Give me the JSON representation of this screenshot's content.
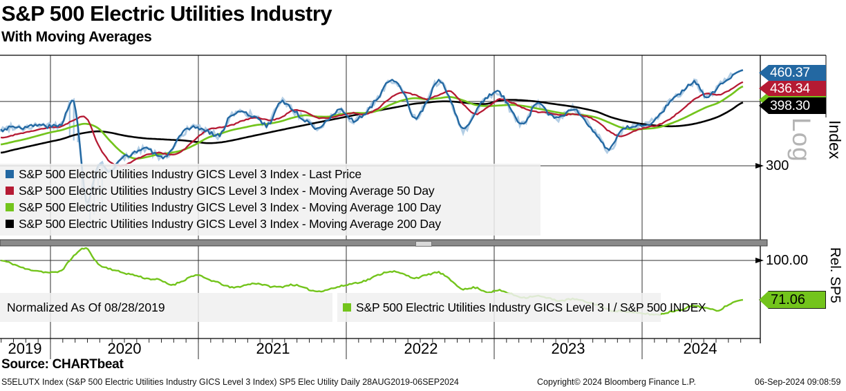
{
  "header": {
    "title": "S&P 500 Electric Utilities Industry",
    "subtitle": "With Moving Averages"
  },
  "colors": {
    "blue": "#2368a2",
    "blue_light": "#a6c6e1",
    "red": "#b51a33",
    "green": "#73c41c",
    "black": "#000000",
    "grid": "#2f2f2f",
    "separator": "#8a8a8a",
    "legend_band": "#f0f0f0",
    "log_label_gray": "#b4b4b4"
  },
  "top_panel": {
    "axis_label": "Index",
    "scale_label": "Log",
    "tick_300": "300",
    "badges": [
      {
        "value": "460.37",
        "series": "last-price",
        "text_color": "#ffffff"
      },
      {
        "value": "436.34",
        "series": "moving-average-50-day",
        "text_color": "#ffffff"
      },
      {
        "value": "",
        "series": "moving-average-100-day",
        "obscured": true,
        "text_color": "#000000"
      },
      {
        "value": "398.30",
        "series": "moving-average-200-day",
        "text_color": "#ffffff"
      }
    ],
    "legend": [
      {
        "label": "S&P 500 Electric Utilities Industry GICS Level 3 Index - Last Price"
      },
      {
        "label": "S&P 500 Electric Utilities Industry GICS Level 3 Index - Moving Average 50 Day"
      },
      {
        "label": "S&P 500 Electric Utilities Industry GICS Level 3 Index - Moving Average 100 Day"
      },
      {
        "label": "S&P 500 Electric Utilities Industry GICS Level 3 Index - Moving Average 200 Day"
      }
    ]
  },
  "bottom_panel": {
    "axis_label": "Rel. SP5",
    "tick_100": "100.00",
    "badge_value": "71.06",
    "note": "Normalized As Of 08/28/2019",
    "legend_label": "S&P 500 Electric Utilities Industry GICS Level 3 I / S&P 500 INDEX"
  },
  "xaxis": {
    "years": [
      "2019",
      "2020",
      "2021",
      "2022",
      "2023",
      "2024"
    ]
  },
  "footer": {
    "source": "Source: CHARTbeat",
    "security_line": "S5ELUTX Index (S&P 500 Electric Utilities Industry GICS Level 3 Index) SP5 Elec Utility  Daily 28AUG2019-06SEP2024",
    "copyright": "Copyright© 2024 Bloomberg Finance L.P.",
    "datetime": "06-Sep-2024 09:08:59"
  },
  "chart_data": [
    {
      "type": "line",
      "panel": "top",
      "title": "S&P 500 Electric Utilities Industry with Moving Averages",
      "x_range": [
        "28AUG2019",
        "06SEP2024"
      ],
      "x_start_decimal_year": 2019.664,
      "x_end_decimal_year": 2024.682,
      "x_resolution": "monthly",
      "yscale": "log",
      "ylim": [
        255,
        470
      ],
      "yticks": [
        300,
        400
      ],
      "grid": true,
      "last_values": {
        "last_price": 460.37,
        "ma50": 436.34,
        "ma200": 398.3
      },
      "series": [
        {
          "name": "Last Price",
          "color": "#2368a2",
          "values": [
            352,
            358,
            356,
            360,
            358,
            362,
            398,
            258,
            300,
            292,
            310,
            318,
            325,
            312,
            320,
            348,
            356,
            350,
            345,
            378,
            380,
            372,
            360,
            400,
            385,
            368,
            356,
            372,
            384,
            368,
            380,
            408,
            438,
            420,
            372,
            398,
            438,
            400,
            352,
            382,
            408,
            416,
            382,
            362,
            395,
            380,
            372,
            388,
            368,
            345,
            322,
            350,
            358,
            360,
            372,
            400,
            418,
            436,
            410,
            428,
            448,
            460.37
          ]
        },
        {
          "name": "Moving Average 50 Day",
          "color": "#b51a33",
          "values": [
            340,
            344,
            348,
            352,
            356,
            358,
            368,
            372,
            330,
            305,
            300,
            308,
            315,
            318,
            315,
            322,
            338,
            352,
            356,
            360,
            368,
            372,
            368,
            372,
            384,
            382,
            372,
            372,
            376,
            380,
            378,
            388,
            406,
            416,
            412,
            404,
            412,
            418,
            395,
            378,
            390,
            404,
            398,
            388,
            382,
            380,
            376,
            378,
            375,
            366,
            350,
            342,
            350,
            356,
            360,
            370,
            386,
            404,
            414,
            412,
            422,
            436.34
          ]
        },
        {
          "name": "Moving Average 100 Day",
          "color": "#73c41c",
          "values": [
            330,
            334,
            338,
            343,
            348,
            352,
            358,
            362,
            355,
            335,
            318,
            310,
            312,
            316,
            318,
            322,
            330,
            340,
            346,
            352,
            356,
            360,
            362,
            366,
            372,
            376,
            374,
            374,
            378,
            380,
            380,
            384,
            394,
            402,
            406,
            404,
            406,
            408,
            402,
            394,
            392,
            393,
            394,
            392,
            388,
            384,
            380,
            378,
            376,
            372,
            364,
            356,
            353,
            354,
            356,
            362,
            370,
            380,
            390,
            398,
            412,
            428
          ]
        },
        {
          "name": "Moving Average 200 Day",
          "color": "#000000",
          "values": [
            318,
            322,
            326,
            330,
            334,
            338,
            344,
            348,
            350,
            348,
            344,
            341,
            339,
            338,
            337,
            336,
            334,
            332,
            333,
            336,
            340,
            344,
            348,
            352,
            356,
            360,
            364,
            368,
            372,
            376,
            380,
            384,
            388,
            392,
            396,
            398,
            400,
            400,
            398,
            396,
            396,
            402,
            403,
            402,
            400,
            397,
            394,
            391,
            387,
            382,
            374,
            368,
            364,
            361,
            359,
            358,
            359,
            362,
            367,
            374,
            385,
            398.3
          ]
        }
      ]
    },
    {
      "type": "line",
      "panel": "bottom",
      "title": "Relative to S&P 500, normalized as of 08/28/2019",
      "x_start_decimal_year": 2019.664,
      "x_end_decimal_year": 2024.682,
      "x_resolution": "monthly",
      "yscale": "log",
      "ylim": [
        60,
        115
      ],
      "yticks": [
        100
      ],
      "grid": true,
      "last_value": 71.06,
      "series": [
        {
          "name": "S&P 500 Electric Utilities Industry GICS Level 3 I / S&P 500 INDEX",
          "color": "#73c41c",
          "values": [
            100,
            97,
            93,
            91.5,
            90,
            92,
            104,
            111,
            97,
            93,
            90,
            88,
            85.5,
            84.5,
            81,
            84,
            88,
            85,
            82,
            79,
            80.5,
            82,
            80,
            79.5,
            81,
            78.5,
            76.5,
            78,
            80,
            82,
            84,
            88,
            91,
            89,
            86,
            88,
            90,
            84,
            78,
            79,
            76,
            77,
            74.5,
            72.5,
            73.5,
            72,
            70.5,
            71.5,
            70,
            68,
            65,
            64.5,
            63.5,
            63,
            62.5,
            64,
            65.5,
            67.5,
            66,
            65,
            69,
            71.06
          ]
        }
      ]
    }
  ]
}
